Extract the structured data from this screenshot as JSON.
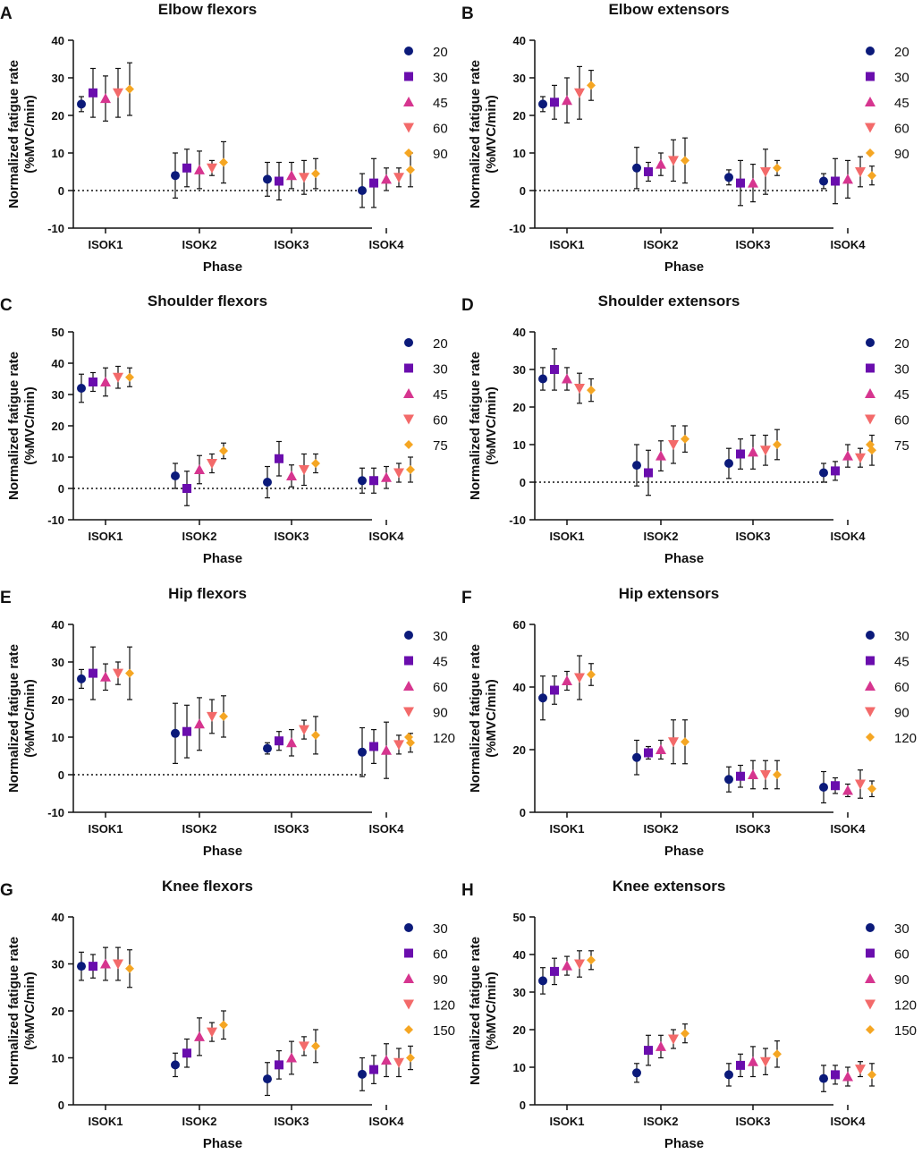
{
  "colors": {
    "c1": "#0b1a7a",
    "c2": "#6a0dad",
    "c3": "#d6358f",
    "c4": "#f36a6a",
    "c5": "#f5a623",
    "axis": "#111111",
    "errorbar": "#111111"
  },
  "chart_data": [
    {
      "panel": "A",
      "type": "scatter",
      "title": "Elbow flexors",
      "xlabel": "Phase",
      "ylabel_line1": "Normalized fatigue rate",
      "ylabel_line2": "(%MVC/min)",
      "ylim": [
        -10,
        40
      ],
      "yticks": [
        "-10",
        "0",
        "10",
        "20",
        "30",
        "40"
      ],
      "categories": [
        "ISOK1",
        "ISOK2",
        "ISOK3",
        "ISOK4"
      ],
      "zero_line": true,
      "series": [
        {
          "name": "20",
          "values": [
            23,
            4,
            3,
            0
          ],
          "err": [
            2,
            6,
            4.5,
            4.5
          ]
        },
        {
          "name": "30",
          "values": [
            26,
            6,
            2.5,
            2
          ],
          "err": [
            6.5,
            5,
            5,
            6.5
          ]
        },
        {
          "name": "45",
          "values": [
            24.5,
            5.5,
            4,
            3
          ],
          "err": [
            6,
            5,
            3.5,
            3
          ]
        },
        {
          "name": "60",
          "values": [
            26,
            6,
            3.5,
            3.5
          ],
          "err": [
            6.5,
            2,
            4.5,
            2.5
          ]
        },
        {
          "name": "90",
          "values": [
            27,
            7.5,
            4.5,
            5.5
          ],
          "err": [
            7,
            5.5,
            4,
            4.5
          ]
        }
      ]
    },
    {
      "panel": "B",
      "type": "scatter",
      "title": "Elbow extensors",
      "xlabel": "Phase",
      "ylabel_line1": "Normalized fatigue rate",
      "ylabel_line2": "(%MVC/min)",
      "ylim": [
        -10,
        40
      ],
      "yticks": [
        "-10",
        "0",
        "10",
        "20",
        "30",
        "40"
      ],
      "categories": [
        "ISOK1",
        "ISOK2",
        "ISOK3",
        "ISOK4"
      ],
      "zero_line": true,
      "series": [
        {
          "name": "20",
          "values": [
            23,
            6,
            3.5,
            2.5
          ],
          "err": [
            2,
            5.5,
            2,
            2
          ]
        },
        {
          "name": "30",
          "values": [
            23.5,
            5,
            2,
            2.5
          ],
          "err": [
            4.5,
            2.5,
            6,
            6
          ]
        },
        {
          "name": "45",
          "values": [
            24,
            7,
            2,
            3
          ],
          "err": [
            6,
            3,
            5,
            5
          ]
        },
        {
          "name": "60",
          "values": [
            26,
            8,
            5,
            5
          ],
          "err": [
            7,
            5.5,
            6,
            4
          ]
        },
        {
          "name": "90",
          "values": [
            28,
            8,
            6,
            4
          ],
          "err": [
            4,
            6,
            2,
            2.5
          ]
        }
      ]
    },
    {
      "panel": "C",
      "type": "scatter",
      "title": "Shoulder flexors",
      "xlabel": "Phase",
      "ylabel_line1": "Normalized fatigue rate",
      "ylabel_line2": "(%MVC/min)",
      "ylim": [
        -10,
        50
      ],
      "yticks": [
        "-10",
        "0",
        "10",
        "20",
        "30",
        "40",
        "50"
      ],
      "categories": [
        "ISOK1",
        "ISOK2",
        "ISOK3",
        "ISOK4"
      ],
      "zero_line": true,
      "series": [
        {
          "name": "20",
          "values": [
            32,
            4,
            2,
            2.5
          ],
          "err": [
            4.5,
            4,
            5,
            4
          ]
        },
        {
          "name": "30",
          "values": [
            34,
            0,
            9.5,
            2.5
          ],
          "err": [
            3,
            5.5,
            5.5,
            4
          ]
        },
        {
          "name": "45",
          "values": [
            34,
            6,
            4,
            3.5
          ],
          "err": [
            4.5,
            4.5,
            3.5,
            3.5
          ]
        },
        {
          "name": "60",
          "values": [
            35.5,
            8,
            6,
            5
          ],
          "err": [
            3.5,
            3,
            5,
            3
          ]
        },
        {
          "name": "75",
          "values": [
            35.5,
            12,
            8,
            6
          ],
          "err": [
            3,
            2.5,
            3,
            4
          ]
        }
      ]
    },
    {
      "panel": "D",
      "type": "scatter",
      "title": "Shoulder extensors",
      "xlabel": "Phase",
      "ylabel_line1": "Normalized fatigue rate",
      "ylabel_line2": "(%MVC/min)",
      "ylim": [
        -10,
        40
      ],
      "yticks": [
        "-10",
        "0",
        "10",
        "20",
        "30",
        "40"
      ],
      "categories": [
        "ISOK1",
        "ISOK2",
        "ISOK3",
        "ISOK4"
      ],
      "zero_line": true,
      "series": [
        {
          "name": "20",
          "values": [
            27.5,
            4.5,
            5,
            2.5
          ],
          "err": [
            3,
            5.5,
            4,
            2.5
          ]
        },
        {
          "name": "30",
          "values": [
            30,
            2.5,
            7.5,
            3
          ],
          "err": [
            5.5,
            6,
            4,
            2.5
          ]
        },
        {
          "name": "45",
          "values": [
            27.5,
            7,
            8,
            7
          ],
          "err": [
            3,
            4,
            4.5,
            3
          ]
        },
        {
          "name": "60",
          "values": [
            25,
            10,
            8.5,
            6.5
          ],
          "err": [
            4,
            5,
            4,
            2.5
          ]
        },
        {
          "name": "75",
          "values": [
            24.5,
            11.5,
            10,
            8.5
          ],
          "err": [
            3,
            3.5,
            4,
            4
          ]
        }
      ]
    },
    {
      "panel": "E",
      "type": "scatter",
      "title": "Hip flexors",
      "xlabel": "Phase",
      "ylabel_line1": "Normalized fatigue rate",
      "ylabel_line2": "(%MVC/min)",
      "ylim": [
        -10,
        40
      ],
      "yticks": [
        "-10",
        "0",
        "10",
        "20",
        "30",
        "40"
      ],
      "categories": [
        "ISOK1",
        "ISOK2",
        "ISOK3",
        "ISOK4"
      ],
      "zero_line": true,
      "series": [
        {
          "name": "30",
          "values": [
            25.5,
            11,
            7,
            6
          ],
          "err": [
            2.5,
            8,
            1.5,
            6.5
          ]
        },
        {
          "name": "45",
          "values": [
            27,
            11.5,
            9,
            7.5
          ],
          "err": [
            7,
            7,
            2.5,
            4.5
          ]
        },
        {
          "name": "60",
          "values": [
            26,
            13.5,
            8.5,
            6.5
          ],
          "err": [
            3.5,
            7,
            3.5,
            7.5
          ]
        },
        {
          "name": "90",
          "values": [
            27,
            15.5,
            12,
            8
          ],
          "err": [
            3,
            4.5,
            2.5,
            2.5
          ]
        },
        {
          "name": "120",
          "values": [
            27,
            15.5,
            10.5,
            8.5
          ],
          "err": [
            7,
            5.5,
            5,
            2.5
          ]
        }
      ]
    },
    {
      "panel": "F",
      "type": "scatter",
      "title": "Hip extensors",
      "xlabel": "Phase",
      "ylabel_line1": "Normalized fatigue rate",
      "ylabel_line2": "(%MVC/min)",
      "ylim": [
        0,
        60
      ],
      "yticks": [
        "0",
        "20",
        "40",
        "60"
      ],
      "categories": [
        "ISOK1",
        "ISOK2",
        "ISOK3",
        "ISOK4"
      ],
      "zero_line": false,
      "series": [
        {
          "name": "30",
          "values": [
            36.5,
            17.5,
            10.5,
            8
          ],
          "err": [
            7,
            5.5,
            4,
            5
          ]
        },
        {
          "name": "45",
          "values": [
            39,
            19,
            11.5,
            8.5
          ],
          "err": [
            4.5,
            2,
            3.5,
            2.5
          ]
        },
        {
          "name": "60",
          "values": [
            42,
            20,
            12,
            7
          ],
          "err": [
            3,
            3,
            4.5,
            2
          ]
        },
        {
          "name": "90",
          "values": [
            43,
            22.5,
            12,
            9
          ],
          "err": [
            7,
            7,
            4.5,
            4.5
          ]
        },
        {
          "name": "120",
          "values": [
            44,
            22.5,
            12,
            7.5
          ],
          "err": [
            3.5,
            7,
            4.5,
            2.5
          ]
        }
      ]
    },
    {
      "panel": "G",
      "type": "scatter",
      "title": "Knee flexors",
      "xlabel": "Phase",
      "ylabel_line1": "Normalized fatigue rate",
      "ylabel_line2": "(%MVC/min)",
      "ylim": [
        0,
        40
      ],
      "yticks": [
        "0",
        "10",
        "20",
        "30",
        "40"
      ],
      "categories": [
        "ISOK1",
        "ISOK2",
        "ISOK3",
        "ISOK4"
      ],
      "zero_line": false,
      "series": [
        {
          "name": "30",
          "values": [
            29.5,
            8.5,
            5.5,
            6.5
          ],
          "err": [
            3,
            2.5,
            3.5,
            3.5
          ]
        },
        {
          "name": "60",
          "values": [
            29.5,
            11,
            8.5,
            7.5
          ],
          "err": [
            2.5,
            3,
            3,
            3
          ]
        },
        {
          "name": "90",
          "values": [
            30,
            14.5,
            10,
            9.5
          ],
          "err": [
            3.5,
            4,
            3.5,
            3.5
          ]
        },
        {
          "name": "120",
          "values": [
            30,
            15.5,
            12.5,
            9
          ],
          "err": [
            3.5,
            2,
            2,
            3
          ]
        },
        {
          "name": "150",
          "values": [
            29,
            17,
            12.5,
            10
          ],
          "err": [
            4,
            3,
            3.5,
            2.5
          ]
        }
      ]
    },
    {
      "panel": "H",
      "type": "scatter",
      "title": "Knee extensors",
      "xlabel": "Phase",
      "ylabel_line1": "Normalized fatigue rate",
      "ylabel_line2": "(%MVC/min)",
      "ylim": [
        0,
        50
      ],
      "yticks": [
        "0",
        "10",
        "20",
        "30",
        "40",
        "50"
      ],
      "categories": [
        "ISOK1",
        "ISOK2",
        "ISOK3",
        "ISOK4"
      ],
      "zero_line": false,
      "series": [
        {
          "name": "30",
          "values": [
            33,
            8.5,
            8,
            7
          ],
          "err": [
            3.5,
            2.5,
            3,
            3.5
          ]
        },
        {
          "name": "60",
          "values": [
            35.5,
            14.5,
            10.5,
            8
          ],
          "err": [
            3.5,
            4,
            3,
            2.5
          ]
        },
        {
          "name": "90",
          "values": [
            37,
            15.5,
            11.5,
            7.5
          ],
          "err": [
            2.5,
            3,
            4,
            2.5
          ]
        },
        {
          "name": "120",
          "values": [
            37.5,
            17.5,
            11.5,
            9.5
          ],
          "err": [
            3.5,
            2.5,
            3.5,
            2
          ]
        },
        {
          "name": "150",
          "values": [
            38.5,
            19,
            13.5,
            8
          ],
          "err": [
            2.5,
            2.5,
            3.5,
            3
          ]
        }
      ]
    }
  ]
}
